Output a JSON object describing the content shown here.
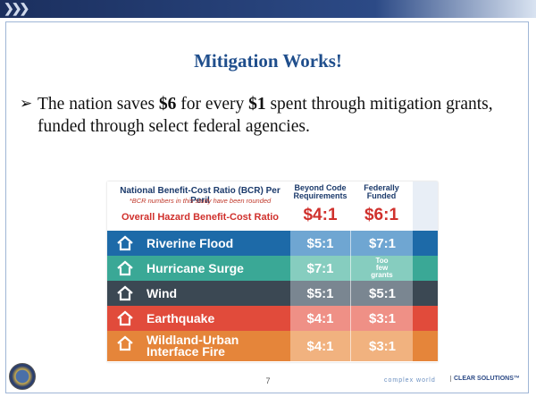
{
  "title": "Mitigation Works!",
  "bullet": [
    "The nation saves ",
    "$6",
    " for every ",
    "$1",
    " spent through mitigation grants, funded through select federal agencies."
  ],
  "table": {
    "heading": "National Benefit-Cost Ratio (BCR) Per Peril",
    "note": "*BCR numbers in this study have been rounded",
    "columns": [
      "Beyond Code Requirements",
      "Federally Funded"
    ],
    "overall": {
      "label": "Overall Hazard Benefit-Cost Ratio",
      "values": [
        "$4:1",
        "$6:1"
      ]
    },
    "rows": [
      {
        "name": "Riverine Flood",
        "values": [
          "$5:1",
          "$7:1"
        ]
      },
      {
        "name": "Hurricane Surge",
        "values": [
          "$7:1",
          "Too few grants"
        ]
      },
      {
        "name": "Wind",
        "values": [
          "$5:1",
          "$5:1"
        ]
      },
      {
        "name": "Earthquake",
        "values": [
          "$4:1",
          "$3:1"
        ]
      },
      {
        "name": "Wildland-Urban Interface Fire",
        "values": [
          "$4:1",
          "$3:1"
        ]
      }
    ]
  },
  "footer": {
    "page": "7",
    "tagline": "complex world",
    "slogan": "CLEAR SOLUTIONS™"
  }
}
